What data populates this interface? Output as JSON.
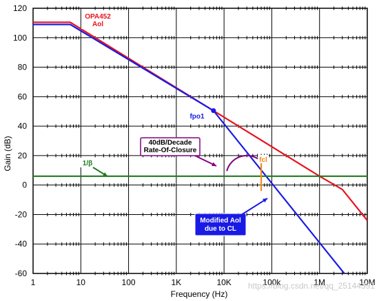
{
  "chart_data": {
    "type": "line",
    "title": "",
    "xlabel": "Frequency (Hz)",
    "ylabel": "Gain (dB)",
    "x_scale": "log",
    "xlim": [
      1,
      10000000
    ],
    "ylim": [
      -60,
      120
    ],
    "grid": true,
    "x_ticks": [
      1,
      10,
      100,
      1000,
      10000,
      100000,
      1000000,
      10000000
    ],
    "x_tick_labels": [
      "1",
      "10",
      "100",
      "1K",
      "10K",
      "100k",
      "1M",
      "10M"
    ],
    "y_ticks": [
      -60,
      -40,
      -20,
      0,
      20,
      40,
      60,
      80,
      100,
      120
    ],
    "y_tick_labels": [
      "-60",
      "-40",
      "-20",
      "0",
      "20",
      "40",
      "60",
      "80",
      "100",
      "120"
    ],
    "series": [
      {
        "name": "OPA452 Aol",
        "color": "#e8121e",
        "x": [
          1,
          6,
          1000000,
          3000000,
          10000000
        ],
        "y": [
          110.5,
          110.5,
          6,
          -3,
          -24
        ]
      },
      {
        "name": "",
        "color": "#1a1ae6",
        "x": [
          1,
          6,
          6000,
          3300000
        ],
        "y": [
          109,
          109,
          50.5,
          -60
        ]
      },
      {
        "name": "1/β",
        "color": "#1f7a1f",
        "x": [
          1,
          10000000
        ],
        "y": [
          6,
          6
        ]
      }
    ],
    "points": [
      {
        "label": "fpo1",
        "x": 6000,
        "y": 50.5,
        "color": "#1a1ae6"
      }
    ],
    "markers": [
      {
        "label": "fcl",
        "x": 60000,
        "y_from": -4,
        "y_to": 18,
        "color": "#f08a1e"
      }
    ],
    "annotations": [
      {
        "name": "aol",
        "lines": [
          "OPA452",
          "Aol"
        ],
        "color": "#e8121e"
      },
      {
        "name": "fpo1",
        "lines": [
          "fpo1"
        ],
        "color": "#1a1ae6"
      },
      {
        "name": "closure",
        "lines": [
          "40dB/Decade",
          "Rate-Of-Closure"
        ],
        "color": "#000000",
        "border": "#800080"
      },
      {
        "name": "beta",
        "lines": [
          "1/β"
        ],
        "color": "#1f7a1f"
      },
      {
        "name": "fcl",
        "lines": [
          "fcl"
        ],
        "color": "#f08a1e"
      },
      {
        "name": "modified",
        "lines": [
          "Modified Aol",
          "due to CL"
        ],
        "color": "#ffffff",
        "bg": "#1a1ae6"
      }
    ],
    "watermark": "https://blog.csdn.net/qq_25144391"
  }
}
